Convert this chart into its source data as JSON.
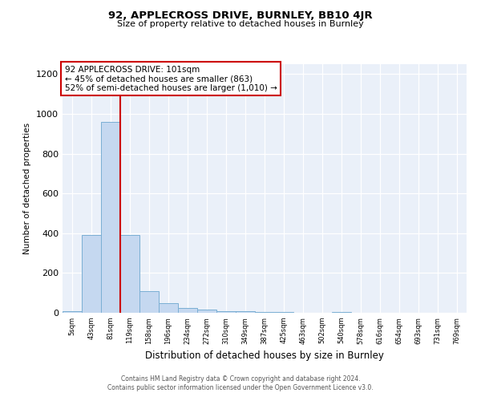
{
  "title1": "92, APPLECROSS DRIVE, BURNLEY, BB10 4JR",
  "title2": "Size of property relative to detached houses in Burnley",
  "xlabel": "Distribution of detached houses by size in Burnley",
  "ylabel": "Number of detached properties",
  "categories": [
    "5sqm",
    "43sqm",
    "81sqm",
    "119sqm",
    "158sqm",
    "196sqm",
    "234sqm",
    "272sqm",
    "310sqm",
    "349sqm",
    "387sqm",
    "425sqm",
    "463sqm",
    "502sqm",
    "540sqm",
    "578sqm",
    "616sqm",
    "654sqm",
    "693sqm",
    "731sqm",
    "769sqm"
  ],
  "values": [
    10,
    390,
    960,
    390,
    110,
    50,
    25,
    15,
    10,
    10,
    5,
    5,
    0,
    0,
    5,
    0,
    0,
    0,
    0,
    0,
    0
  ],
  "bar_color": "#c5d8f0",
  "bar_edge_color": "#7bafd4",
  "red_line_x": 2.5,
  "red_line_color": "#cc0000",
  "ylim": [
    0,
    1250
  ],
  "yticks": [
    0,
    200,
    400,
    600,
    800,
    1000,
    1200
  ],
  "background_color": "#eaf0f9",
  "annotation_text": "92 APPLECROSS DRIVE: 101sqm\n← 45% of detached houses are smaller (863)\n52% of semi-detached houses are larger (1,010) →",
  "annotation_box_color": "white",
  "annotation_box_edge_color": "#cc0000",
  "footer1": "Contains HM Land Registry data © Crown copyright and database right 2024.",
  "footer2": "Contains public sector information licensed under the Open Government Licence v3.0."
}
